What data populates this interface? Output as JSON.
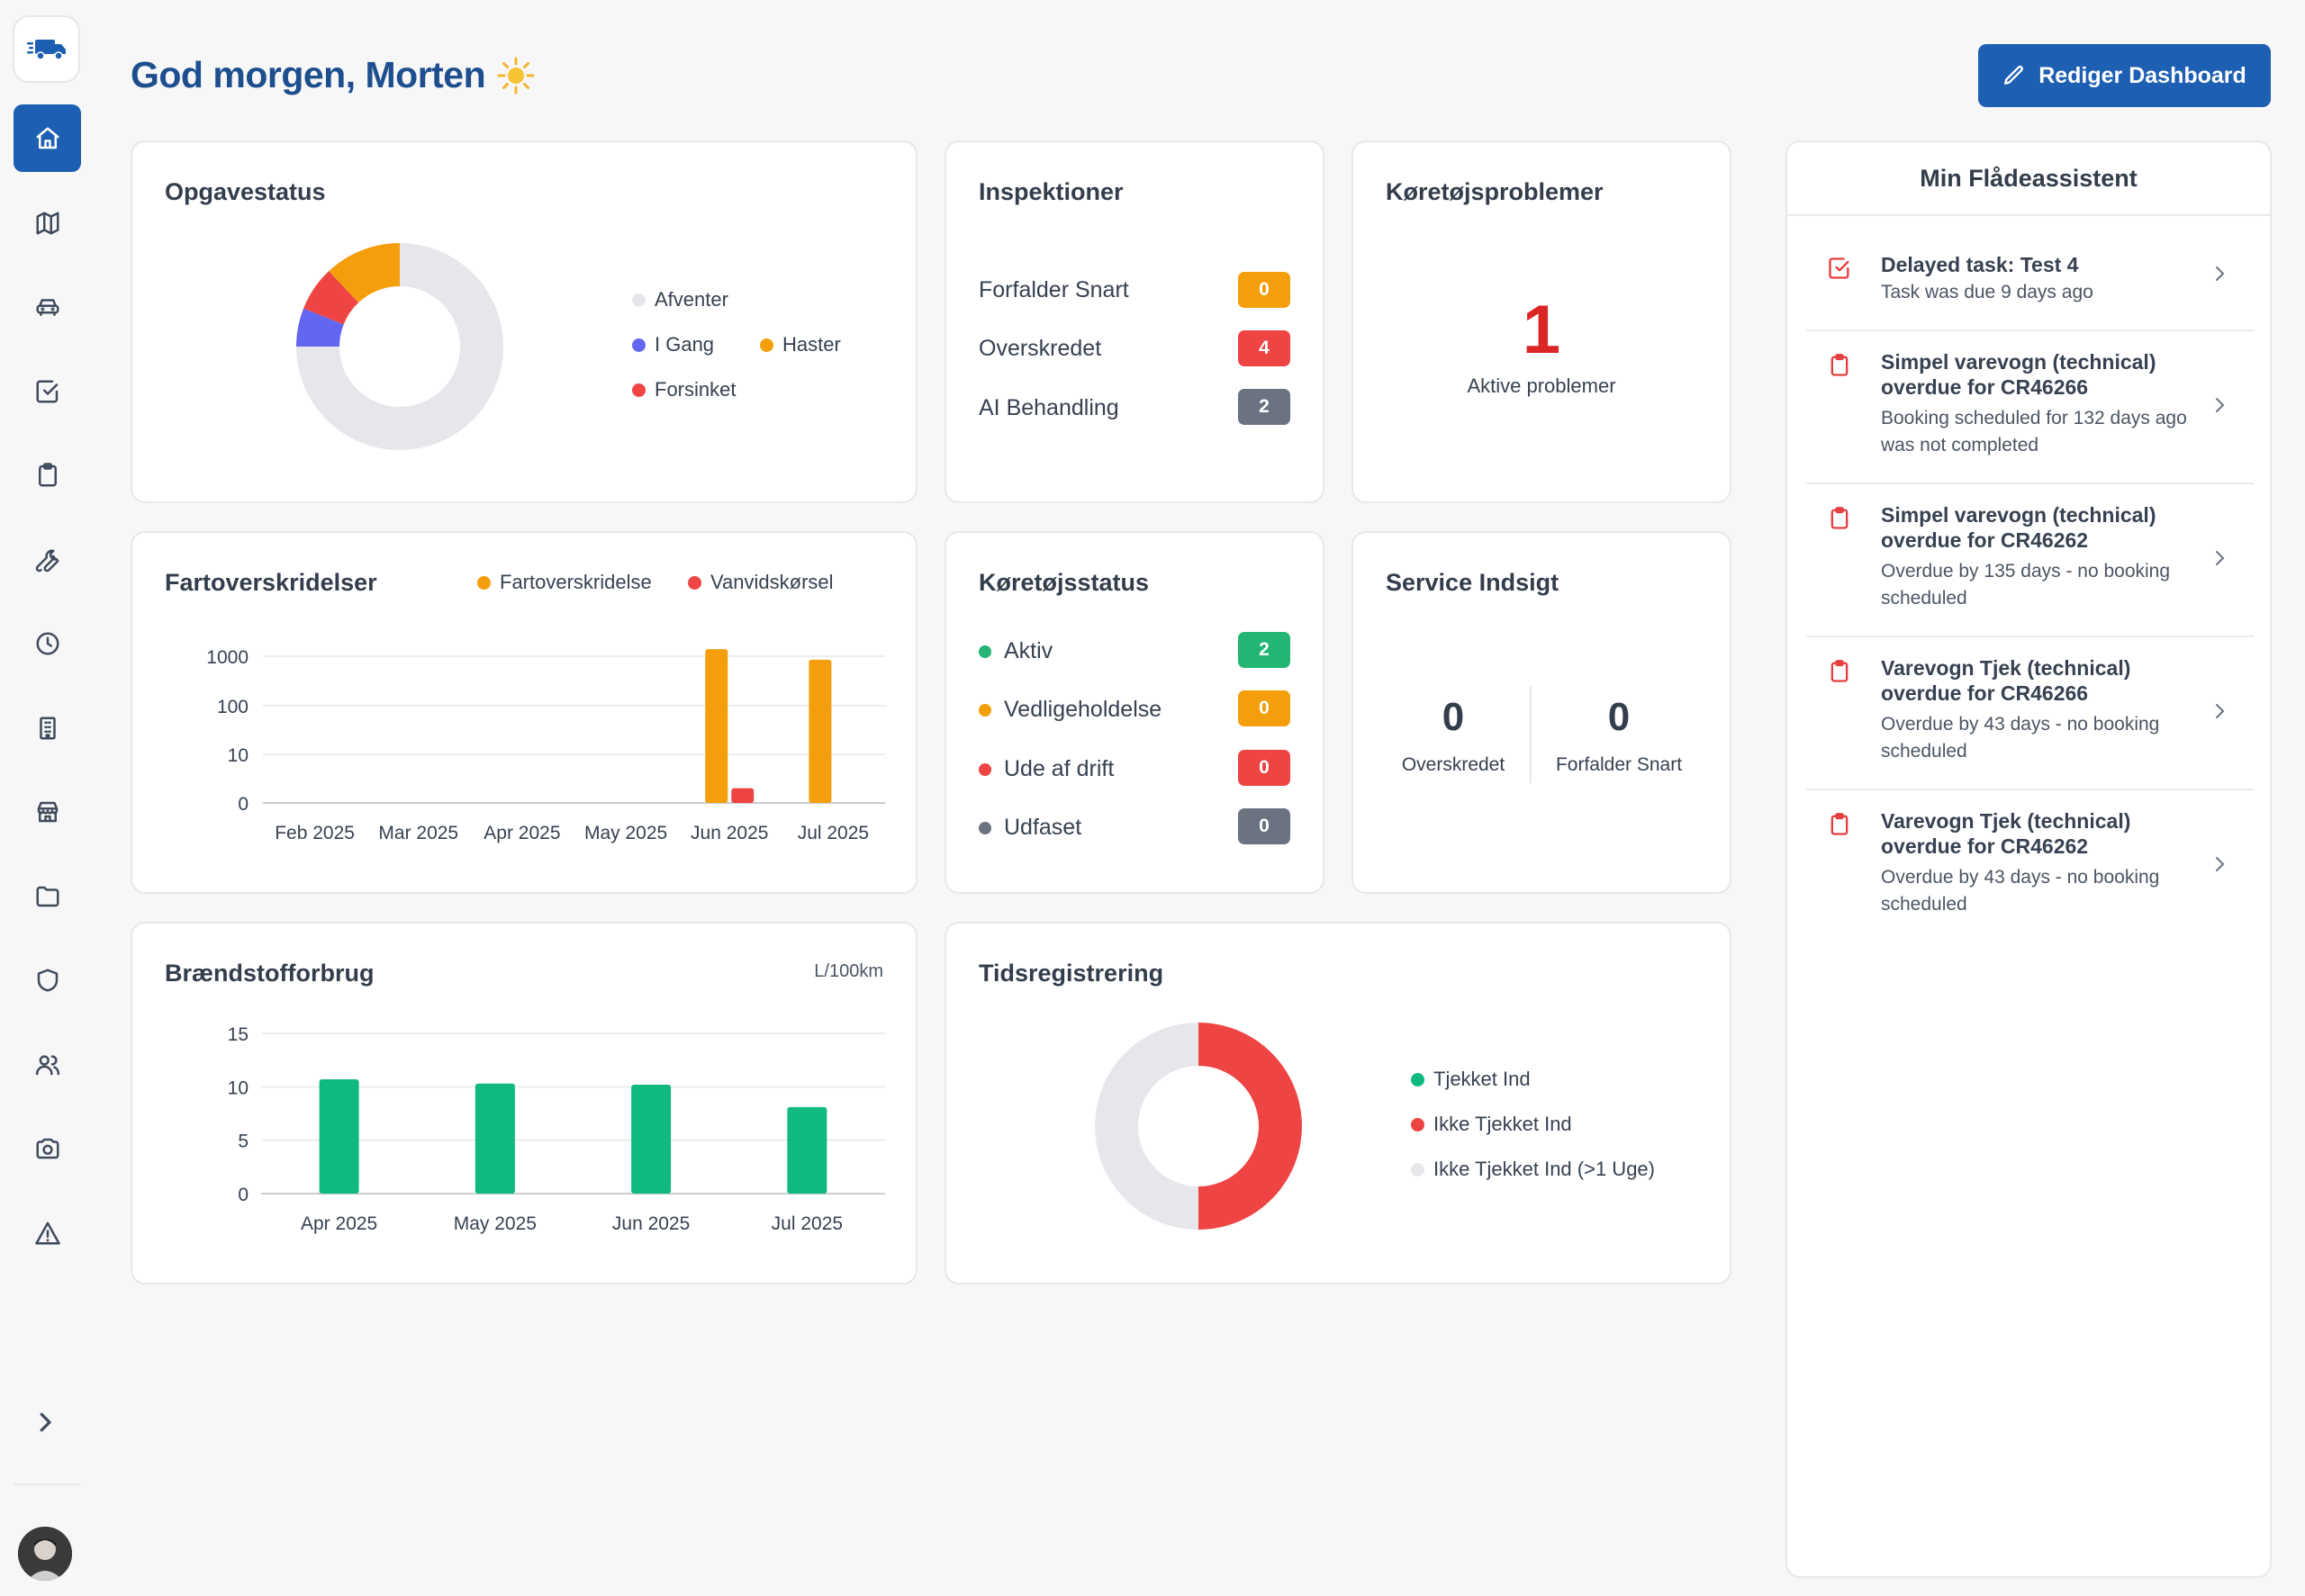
{
  "header": {
    "greeting": "God morgen, Morten",
    "edit_button": "Rediger Dashboard"
  },
  "sidebar": {
    "logo": "truck-logo",
    "items": [
      {
        "name": "home",
        "icon": "home-icon",
        "active": true
      },
      {
        "name": "map",
        "icon": "map-icon"
      },
      {
        "name": "vehicles",
        "icon": "car-icon"
      },
      {
        "name": "tasks",
        "icon": "checkbox-icon"
      },
      {
        "name": "inspections",
        "icon": "clipboard-icon"
      },
      {
        "name": "maintenance",
        "icon": "wrench-icon"
      },
      {
        "name": "time",
        "icon": "clock-icon"
      },
      {
        "name": "buildings",
        "icon": "building-icon"
      },
      {
        "name": "shop",
        "icon": "store-icon"
      },
      {
        "name": "files",
        "icon": "folder-icon"
      },
      {
        "name": "security",
        "icon": "shield-icon"
      },
      {
        "name": "users",
        "icon": "users-icon"
      },
      {
        "name": "camera",
        "icon": "camera-icon"
      },
      {
        "name": "alerts",
        "icon": "warning-icon"
      }
    ],
    "expand_icon": "chevron-right-icon"
  },
  "opgavestatus": {
    "title": "Opgavestatus",
    "legend": [
      {
        "label": "Afventer",
        "color": "#e5e7eb"
      },
      {
        "label": "I Gang",
        "color": "#6366f1"
      },
      {
        "label": "Haster",
        "color": "#f59e0b"
      },
      {
        "label": "Forsinket",
        "color": "#ef4444"
      }
    ]
  },
  "inspektioner": {
    "title": "Inspektioner",
    "rows": [
      {
        "label": "Forfalder Snart",
        "value": "0",
        "color": "#f59e0b"
      },
      {
        "label": "Overskredet",
        "value": "4",
        "color": "#ef4444"
      },
      {
        "label": "AI Behandling",
        "value": "2",
        "color": "#6b7280"
      }
    ]
  },
  "koeretoejsproblemer": {
    "title": "Køretøjsproblemer",
    "count": "1",
    "label": "Aktive problemer"
  },
  "fartoverskridelser": {
    "title": "Fartoverskridelser",
    "legend": [
      {
        "label": "Fartoverskridelse",
        "color": "#f59e0b"
      },
      {
        "label": "Vanvidskørsel",
        "color": "#ef4444"
      }
    ]
  },
  "koeretoejsstatus": {
    "title": "Køretøjsstatus",
    "rows": [
      {
        "label": "Aktiv",
        "value": "2",
        "color": "#22b573"
      },
      {
        "label": "Vedligeholdelse",
        "value": "0",
        "color": "#f59e0b"
      },
      {
        "label": "Ude af drift",
        "value": "0",
        "color": "#ef4444"
      },
      {
        "label": "Udfaset",
        "value": "0",
        "color": "#6b7280"
      }
    ]
  },
  "service": {
    "title": "Service Indsigt",
    "overskredet_value": "0",
    "overskredet_label": "Overskredet",
    "snart_value": "0",
    "snart_label": "Forfalder Snart"
  },
  "braendstof": {
    "title": "Brændstofforbrug",
    "unit": "L/100km"
  },
  "tidsregistrering": {
    "title": "Tidsregistrering",
    "legend": [
      {
        "label": "Tjekket Ind",
        "color": "#10b981"
      },
      {
        "label": "Ikke Tjekket Ind",
        "color": "#ef4444"
      },
      {
        "label": "Ikke Tjekket Ind (>1 Uge)",
        "color": "#e5e7eb"
      }
    ]
  },
  "assistant": {
    "title": "Min Flådeassistent",
    "items": [
      {
        "icon": "checkbox-icon",
        "title": "Delayed task: Test 4",
        "sub": "Task was due 9 days ago"
      },
      {
        "icon": "clipboard-icon",
        "title": "Simpel varevogn (technical) overdue for CR46266",
        "sub": "Booking scheduled for 132 days ago was not completed"
      },
      {
        "icon": "clipboard-icon",
        "title": "Simpel varevogn (technical) overdue for CR46262",
        "sub": "Overdue by 135 days - no booking scheduled"
      },
      {
        "icon": "clipboard-icon",
        "title": "Varevogn Tjek (technical) overdue for CR46266",
        "sub": "Overdue by 43 days - no booking scheduled"
      },
      {
        "icon": "clipboard-icon",
        "title": "Varevogn Tjek (technical) overdue for CR46262",
        "sub": "Overdue by 43 days - no booking scheduled"
      }
    ]
  },
  "chart_data": [
    {
      "type": "pie",
      "title": "Opgavestatus",
      "categories": [
        "Afventer",
        "I Gang",
        "Forsinket",
        "Haster"
      ],
      "values": [
        75,
        6,
        7,
        12
      ],
      "colors": [
        "#e5e7eb",
        "#6366f1",
        "#ef4444",
        "#f59e0b"
      ]
    },
    {
      "type": "bar",
      "title": "Fartoverskridelser",
      "scale": "log",
      "categories": [
        "Feb 2025",
        "Mar 2025",
        "Apr 2025",
        "May 2025",
        "Jun 2025",
        "Jul 2025"
      ],
      "series": [
        {
          "name": "Fartoverskridelse",
          "color": "#f59e0b",
          "values": [
            0,
            0,
            0,
            0,
            1400,
            850
          ]
        },
        {
          "name": "Vanvidskørsel",
          "color": "#ef4444",
          "values": [
            0,
            0,
            0,
            0,
            2,
            0
          ]
        }
      ],
      "yticks": [
        "1000",
        "100",
        "10",
        "0"
      ]
    },
    {
      "type": "bar",
      "title": "Brændstofforbrug",
      "categories": [
        "Apr 2025",
        "May 2025",
        "Jun 2025",
        "Jul 2025"
      ],
      "values": [
        10.7,
        10.3,
        10.2,
        8.1
      ],
      "color": "#10b981",
      "ylim": [
        0,
        15
      ],
      "yticks": [
        "15",
        "10",
        "5",
        "0"
      ]
    },
    {
      "type": "pie",
      "title": "Tidsregistrering",
      "categories": [
        "Tjekket Ind",
        "Ikke Tjekket Ind",
        "Ikke Tjekket Ind (>1 Uge)"
      ],
      "values": [
        0,
        50,
        50
      ],
      "colors": [
        "#10b981",
        "#ef4444",
        "#e5e7eb"
      ]
    }
  ]
}
